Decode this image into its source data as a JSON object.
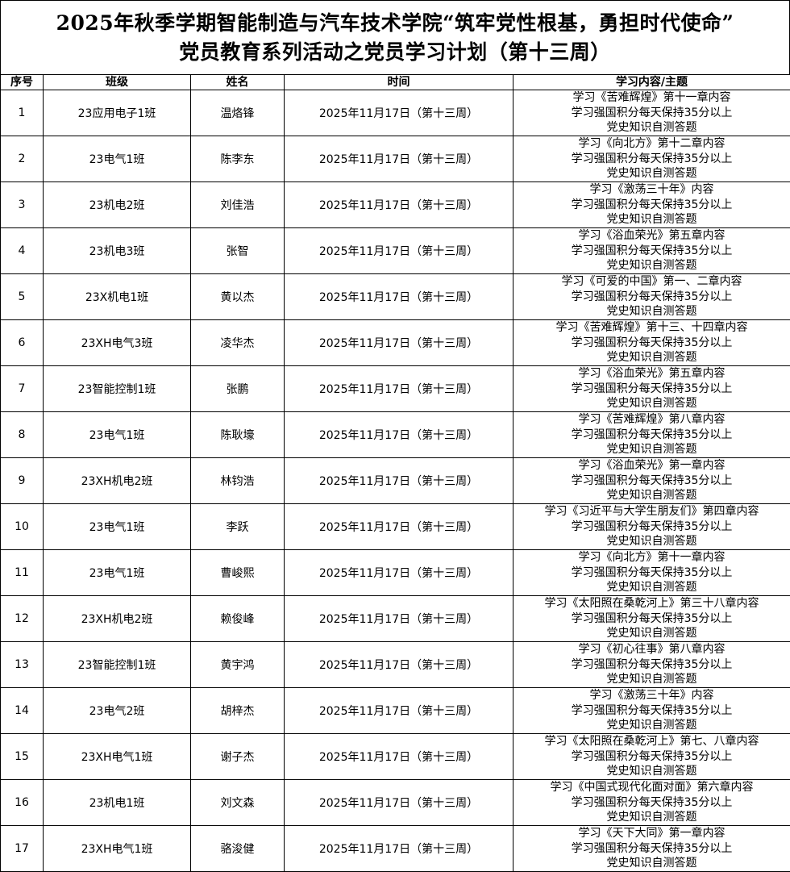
{
  "title": {
    "line1": "2025年秋季学期智能制造与汽车技术学院“筑牢党性根基，勇担时代使命”",
    "line2": "党员教育系列活动之党员学习计划（第十三周）"
  },
  "headers": [
    "序号",
    "班级",
    "姓名",
    "时间",
    "学习内容/主题"
  ],
  "rows": [
    {
      "no": "1",
      "class": "23应用电子1班",
      "name": "温烙锋",
      "time": "2025年11月17日（第十三周）",
      "content": [
        "学习《苦难辉煌》第十一章内容",
        "学习强国积分每天保持35分以上",
        "党史知识自测答题"
      ]
    },
    {
      "no": "2",
      "class": "23电气1班",
      "name": "陈李东",
      "time": "2025年11月17日（第十三周）",
      "content": [
        "学习《向北方》第十二章内容",
        "学习强国积分每天保持35分以上",
        "党史知识自测答题"
      ]
    },
    {
      "no": "3",
      "class": "23机电2班",
      "name": "刘佳浩",
      "time": "2025年11月17日（第十三周）",
      "content": [
        "学习《激荡三十年》内容",
        "学习强国积分每天保持35分以上",
        "党史知识自测答题"
      ]
    },
    {
      "no": "4",
      "class": "23机电3班",
      "name": "张智",
      "time": "2025年11月17日（第十三周）",
      "content": [
        "学习《浴血荣光》第五章内容",
        "学习强国积分每天保持35分以上",
        "党史知识自测答题"
      ]
    },
    {
      "no": "5",
      "class": "23X机电1班",
      "name": "黄以杰",
      "time": "2025年11月17日（第十三周）",
      "content": [
        "学习《可爱的中国》第一、二章内容",
        "学习强国积分每天保持35分以上",
        "党史知识自测答题"
      ]
    },
    {
      "no": "6",
      "class": "23XH电气3班",
      "name": "凌华杰",
      "time": "2025年11月17日（第十三周）",
      "content": [
        "学习《苦难辉煌》第十三、十四章内容",
        "学习强国积分每天保持35分以上",
        "党史知识自测答题"
      ]
    },
    {
      "no": "7",
      "class": "23智能控制1班",
      "name": "张鹏",
      "time": "2025年11月17日（第十三周）",
      "content": [
        "学习《浴血荣光》第五章内容",
        "学习强国积分每天保持35分以上",
        "党史知识自测答题"
      ]
    },
    {
      "no": "8",
      "class": "23电气1班",
      "name": "陈耿壕",
      "time": "2025年11月17日（第十三周）",
      "content": [
        "学习《苦难辉煌》第八章内容",
        "学习强国积分每天保持35分以上",
        "党史知识自测答题"
      ]
    },
    {
      "no": "9",
      "class": "23XH机电2班",
      "name": "林钧浩",
      "time": "2025年11月17日（第十三周）",
      "content": [
        "学习《浴血荣光》第一章内容",
        "学习强国积分每天保持35分以上",
        "党史知识自测答题"
      ]
    },
    {
      "no": "10",
      "class": "23电气1班",
      "name": "李跃",
      "time": "2025年11月17日（第十三周）",
      "content": [
        "学习《习近平与大学生朋友们》第四章内容",
        "学习强国积分每天保持35分以上",
        "党史知识自测答题"
      ]
    },
    {
      "no": "11",
      "class": "23电气1班",
      "name": "曹峻熙",
      "time": "2025年11月17日（第十三周）",
      "content": [
        "学习《向北方》第十一章内容",
        "学习强国积分每天保持35分以上",
        "党史知识自测答题"
      ]
    },
    {
      "no": "12",
      "class": "23XH机电2班",
      "name": "赖俊峰",
      "time": "2025年11月17日（第十三周）",
      "content": [
        "学习《太阳照在桑乾河上》第三十八章内容",
        "学习强国积分每天保持35分以上",
        "党史知识自测答题"
      ]
    },
    {
      "no": "13",
      "class": "23智能控制1班",
      "name": "黄宇鸿",
      "time": "2025年11月17日（第十三周）",
      "content": [
        "学习《初心往事》第八章内容",
        "学习强国积分每天保持35分以上",
        "党史知识自测答题"
      ]
    },
    {
      "no": "14",
      "class": "23电气2班",
      "name": "胡梓杰",
      "time": "2025年11月17日（第十三周）",
      "content": [
        "学习《激荡三十年》内容",
        "学习强国积分每天保持35分以上",
        "党史知识自测答题"
      ]
    },
    {
      "no": "15",
      "class": "23XH电气1班",
      "name": "谢子杰",
      "time": "2025年11月17日（第十三周）",
      "content": [
        "学习《太阳照在桑乾河上》第七、八章内容",
        "学习强国积分每天保持35分以上",
        "党史知识自测答题"
      ]
    },
    {
      "no": "16",
      "class": "23机电1班",
      "name": "刘文森",
      "time": "2025年11月17日（第十三周）",
      "content": [
        "学习《中国式现代化面对面》第六章内容",
        "学习强国积分每天保持35分以上",
        "党史知识自测答题"
      ]
    },
    {
      "no": "17",
      "class": "23XH电气1班",
      "name": "骆浚健",
      "time": "2025年11月17日（第十三周）",
      "content": [
        "学习《天下大同》第一章内容",
        "学习强国积分每天保持35分以上",
        "党史知识自测答题"
      ]
    }
  ]
}
